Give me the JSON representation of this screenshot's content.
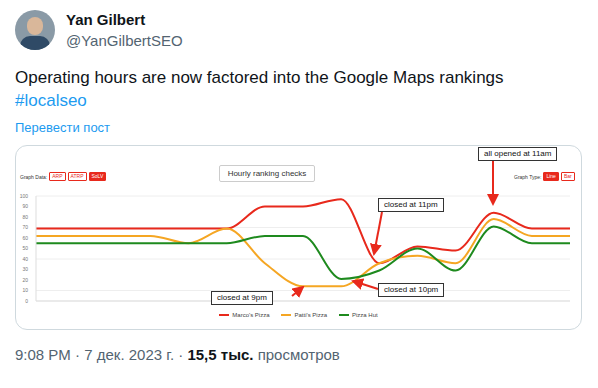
{
  "post": {
    "author": "Yan Gilbert",
    "handle": "@YanGilbertSEO",
    "text": "Operating hours are now factored into the Google Maps rankings",
    "hashtag": "#localseo",
    "translate": "Перевести пост",
    "time": "9:08 PM",
    "separator": "·",
    "date": "7 дек. 2023 г.",
    "views": "15,5 тыс.",
    "views_label": "просмотров"
  },
  "chart_data": {
    "type": "line",
    "title": "Hourly ranking checks",
    "controls": {
      "graph_data_label": "Graph Data:",
      "graph_data_options": [
        "ARP",
        "ATRP",
        "SoLV"
      ],
      "graph_data_selected": "SoLV",
      "graph_type_label": "Graph Type:",
      "graph_type_options": [
        "Line",
        "Bar"
      ],
      "graph_type_selected": "Line"
    },
    "categories": [
      null,
      null,
      null,
      null,
      null,
      null,
      null,
      null,
      null,
      null,
      null,
      null,
      null,
      null,
      null
    ],
    "series": [
      {
        "name": "Marco's Pizza",
        "color": "#e8291c",
        "values": [
          69,
          69,
          69,
          69,
          69,
          69,
          90,
          90,
          97,
          36,
          52,
          48,
          84,
          69,
          69
        ]
      },
      {
        "name": "Patti's Pizza",
        "color": "#f5a623",
        "values": [
          62,
          62,
          62,
          62,
          55,
          69,
          36,
          14,
          14,
          36,
          43,
          36,
          78,
          62,
          62
        ]
      },
      {
        "name": "Pizza Hut",
        "color": "#1e8a1e",
        "values": [
          55,
          55,
          55,
          55,
          55,
          55,
          62,
          62,
          21,
          29,
          50,
          29,
          71,
          55,
          55
        ]
      }
    ],
    "ylim": [
      0,
      100
    ],
    "yticks": [
      0,
      10,
      20,
      30,
      40,
      50,
      60,
      70,
      80,
      90,
      100
    ],
    "grid": true,
    "tick_labels": "y",
    "legend": "bottom",
    "annotations": [
      "all opened at 11am",
      "closed at 11pm",
      "closed at 9pm",
      "closed at 10pm"
    ]
  }
}
